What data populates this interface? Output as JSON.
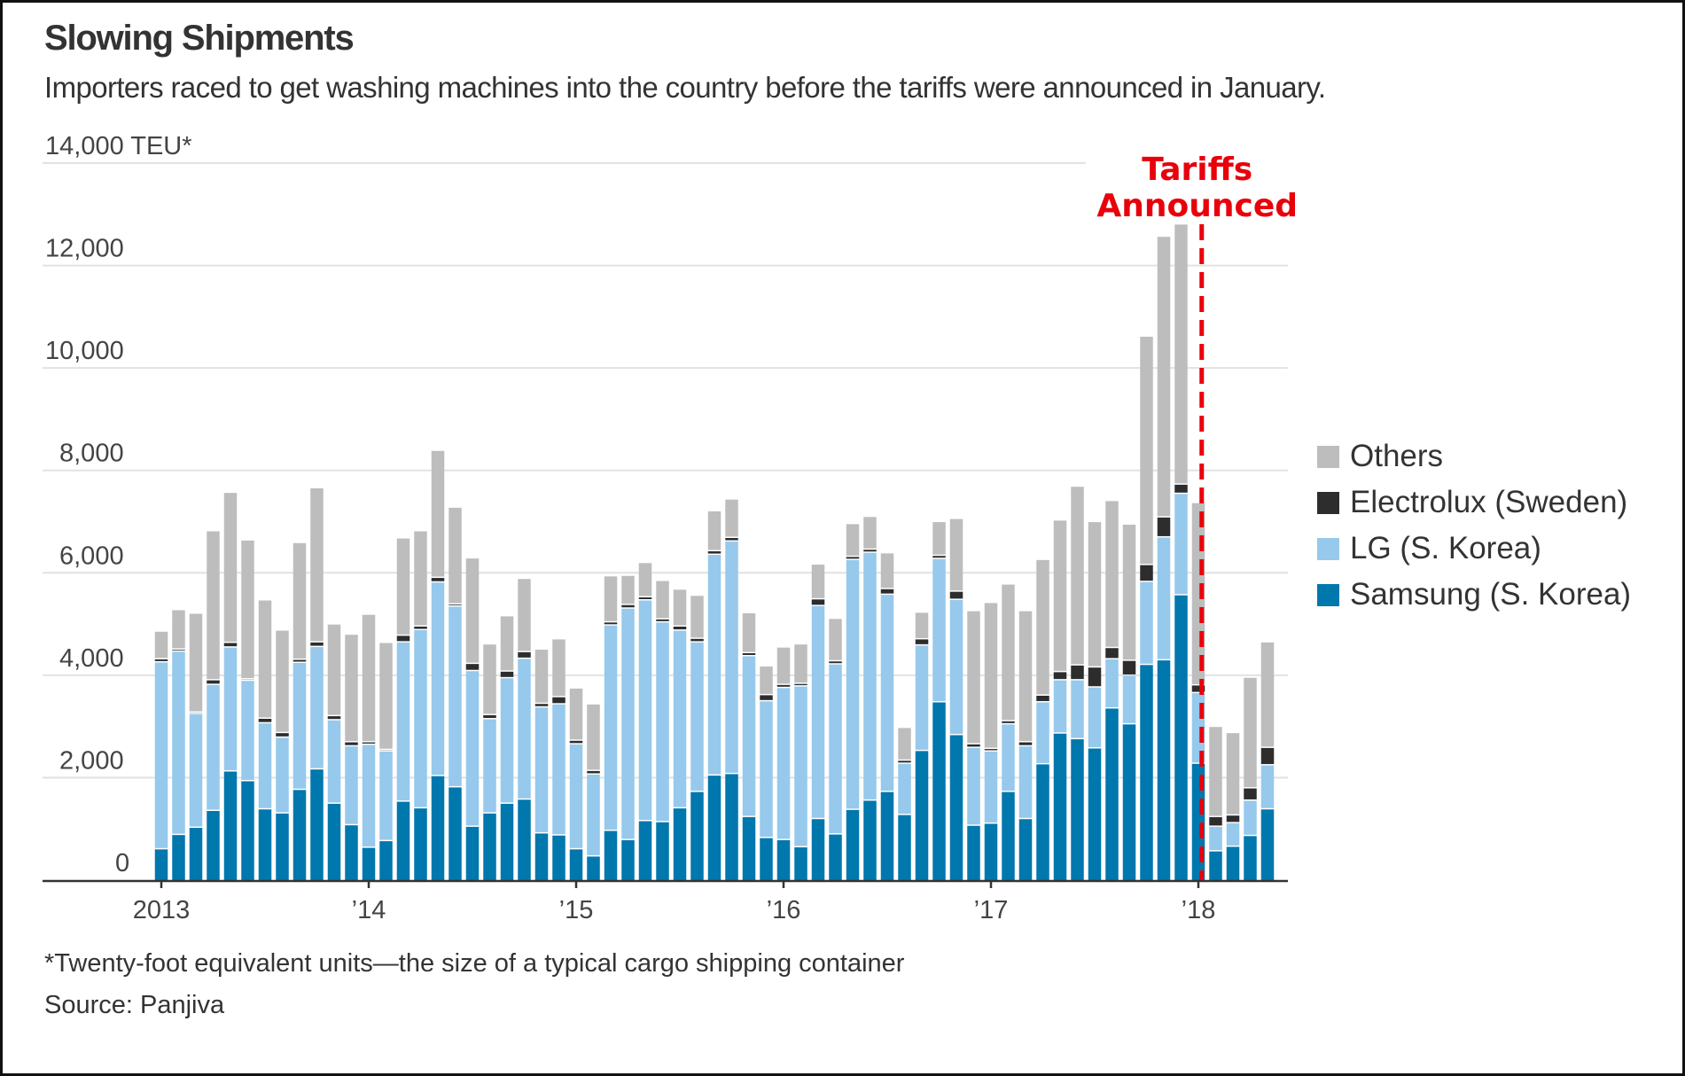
{
  "header": {
    "title": "Slowing Shipments",
    "subtitle": "Importers raced to get washing machines into the country before the tariffs were announced in January."
  },
  "footer": {
    "footnote": "*Twenty-foot equivalent units—the size of a typical cargo shipping container",
    "source": "Source: Panjiva"
  },
  "chart_data": {
    "type": "bar",
    "stacked": true,
    "title": "Slowing Shipments",
    "subtitle": "Importers raced to get washing machines into the country before the tariffs were announced in January.",
    "xlabel": "",
    "ylabel": "TEU*",
    "ylim": [
      0,
      14000
    ],
    "yticks": [
      0,
      2000,
      4000,
      6000,
      8000,
      10000,
      12000,
      14000
    ],
    "ytick_labels": [
      "0",
      "2,000",
      "4,000",
      "6,000",
      "8,000",
      "10,000",
      "12,000",
      "14,000 TEU*"
    ],
    "xtick_labels": [
      "2013",
      "’14",
      "’15",
      "’16",
      "’17",
      "’18"
    ],
    "xtick_month_index": [
      0,
      12,
      24,
      36,
      48,
      60
    ],
    "grid": true,
    "legend_placement": "right",
    "annotation": {
      "text_line1": "Tariffs",
      "text_line2": "Announced",
      "at_month_index": 60.5,
      "color": "#e8000b",
      "style": "dashed-vertical-line"
    },
    "categories": [
      "Jan 2013",
      "Feb 2013",
      "Mar 2013",
      "Apr 2013",
      "May 2013",
      "Jun 2013",
      "Jul 2013",
      "Aug 2013",
      "Sep 2013",
      "Oct 2013",
      "Nov 2013",
      "Dec 2013",
      "Jan 2014",
      "Feb 2014",
      "Mar 2014",
      "Apr 2014",
      "May 2014",
      "Jun 2014",
      "Jul 2014",
      "Aug 2014",
      "Sep 2014",
      "Oct 2014",
      "Nov 2014",
      "Dec 2014",
      "Jan 2015",
      "Feb 2015",
      "Mar 2015",
      "Apr 2015",
      "May 2015",
      "Jun 2015",
      "Jul 2015",
      "Aug 2015",
      "Sep 2015",
      "Oct 2015",
      "Nov 2015",
      "Dec 2015",
      "Jan 2016",
      "Feb 2016",
      "Mar 2016",
      "Apr 2016",
      "May 2016",
      "Jun 2016",
      "Jul 2016",
      "Aug 2016",
      "Sep 2016",
      "Oct 2016",
      "Nov 2016",
      "Dec 2016",
      "Jan 2017",
      "Feb 2017",
      "Mar 2017",
      "Apr 2017",
      "May 2017",
      "Jun 2017",
      "Jul 2017",
      "Aug 2017",
      "Sep 2017",
      "Oct 2017",
      "Nov 2017",
      "Dec 2017",
      "Jan 2018",
      "Feb 2018",
      "Mar 2018",
      "Apr 2018",
      "May 2018"
    ],
    "series": [
      {
        "name": "Samsung (S. Korea)",
        "color": "#0077ad",
        "values": [
          600,
          880,
          1020,
          1350,
          2120,
          1930,
          1380,
          1300,
          1760,
          2160,
          1490,
          1070,
          630,
          760,
          1530,
          1400,
          2030,
          1810,
          1040,
          1300,
          1490,
          1570,
          910,
          870,
          600,
          460,
          960,
          780,
          1150,
          1130,
          1400,
          1720,
          2040,
          2070,
          1230,
          820,
          780,
          640,
          1190,
          890,
          1370,
          1550,
          1720,
          1270,
          2520,
          3470,
          2830,
          1060,
          1100,
          1720,
          1190,
          2260,
          2860,
          2750,
          2570,
          3350,
          3040,
          4200,
          4290,
          5560,
          2270,
          560,
          650,
          860,
          1380
        ]
      },
      {
        "name": "LG (S. Korea)",
        "color": "#96c9ec",
        "values": [
          3650,
          3580,
          2220,
          2460,
          2420,
          1960,
          1680,
          1480,
          2480,
          2390,
          1630,
          1540,
          2010,
          1750,
          3110,
          3480,
          3780,
          3530,
          3040,
          1840,
          2450,
          2750,
          2460,
          2560,
          2050,
          1600,
          4010,
          4520,
          4310,
          3900,
          3470,
          2920,
          4310,
          4540,
          3140,
          2670,
          2970,
          3140,
          4160,
          3320,
          4880,
          4840,
          3850,
          1000,
          2060,
          2800,
          2640,
          1520,
          1410,
          1320,
          1420,
          1210,
          1040,
          1150,
          1190,
          960,
          950,
          1620,
          2400,
          1980,
          1380,
          480,
          460,
          690,
          860
        ]
      },
      {
        "name": "Electrolux (Sweden)",
        "color": "#2d2d2d",
        "values": [
          60,
          40,
          30,
          90,
          90,
          30,
          90,
          90,
          60,
          90,
          80,
          80,
          50,
          30,
          130,
          70,
          90,
          40,
          140,
          80,
          130,
          130,
          70,
          140,
          70,
          70,
          60,
          70,
          60,
          60,
          80,
          70,
          70,
          70,
          60,
          120,
          60,
          50,
          130,
          60,
          60,
          60,
          110,
          60,
          120,
          60,
          160,
          70,
          50,
          60,
          80,
          130,
          160,
          290,
          390,
          220,
          290,
          330,
          390,
          180,
          150,
          190,
          150,
          240,
          340
        ]
      },
      {
        "name": "Others",
        "color": "#bdbdbd",
        "values": [
          540,
          770,
          1930,
          2910,
          2930,
          2710,
          2310,
          2000,
          2280,
          3010,
          1790,
          2100,
          2490,
          2090,
          1900,
          1860,
          2480,
          1890,
          2060,
          1380,
          1080,
          1430,
          1060,
          1130,
          1020,
          1300,
          900,
          570,
          670,
          750,
          720,
          840,
          780,
          750,
          780,
          560,
          730,
          770,
          680,
          830,
          640,
          640,
          700,
          640,
          520,
          660,
          1420,
          2600,
          2850,
          2670,
          2560,
          2650,
          2960,
          3490,
          2840,
          2870,
          2660,
          4460,
          5480,
          5080,
          3560,
          1760,
          1610,
          2160,
          2060
        ]
      }
    ],
    "legend_order": [
      "Others",
      "Electrolux (Sweden)",
      "LG (S. Korea)",
      "Samsung (S. Korea)"
    ]
  }
}
